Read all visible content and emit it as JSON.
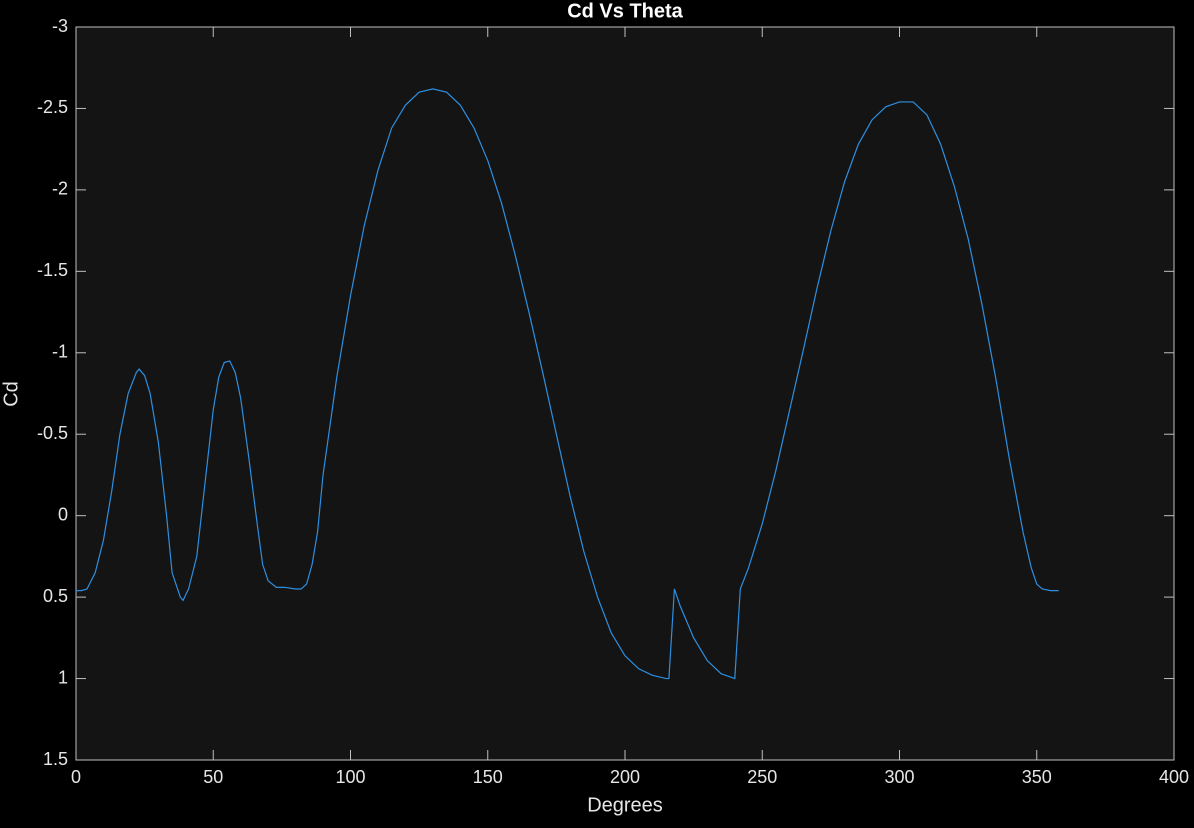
{
  "chart_data": {
    "type": "line",
    "title": "Cd Vs Theta",
    "x_label": "Degrees",
    "y_label": "Cd",
    "y_reversed": true,
    "grid": false,
    "xlim": [
      0,
      400
    ],
    "xticks": [
      0,
      50,
      100,
      150,
      200,
      250,
      300,
      350,
      400
    ],
    "ylim": [
      -3,
      1.5
    ],
    "yticks": [
      -3,
      -2.5,
      -2,
      -1.5,
      -1,
      -0.5,
      0,
      0.5,
      1,
      1.5
    ],
    "series": [
      {
        "name": "Cd",
        "color": "#2e8fe0",
        "x": [
          0,
          2,
          4,
          7,
          10,
          13,
          16,
          19,
          22,
          23,
          25,
          27,
          30,
          33,
          35,
          38,
          39,
          41,
          44,
          47,
          50,
          52,
          54,
          56,
          58,
          60,
          63,
          66,
          68,
          70,
          73,
          76,
          80,
          82,
          84,
          86,
          88,
          90,
          95,
          100,
          105,
          110,
          115,
          120,
          125,
          130,
          135,
          140,
          145,
          150,
          155,
          160,
          165,
          170,
          175,
          180,
          185,
          190,
          195,
          200,
          205,
          210,
          215,
          216,
          218,
          220,
          225,
          230,
          235,
          240,
          242,
          245,
          250,
          255,
          260,
          265,
          270,
          275,
          280,
          285,
          290,
          295,
          300,
          305,
          310,
          315,
          320,
          325,
          330,
          335,
          340,
          345,
          348,
          350,
          352,
          355,
          358
        ],
        "values": [
          0.46,
          0.46,
          0.45,
          0.35,
          0.15,
          -0.15,
          -0.5,
          -0.75,
          -0.88,
          -0.9,
          -0.86,
          -0.75,
          -0.45,
          0,
          0.35,
          0.5,
          0.52,
          0.45,
          0.25,
          -0.2,
          -0.65,
          -0.85,
          -0.94,
          -0.95,
          -0.88,
          -0.72,
          -0.35,
          0.05,
          0.3,
          0.4,
          0.44,
          0.44,
          0.45,
          0.45,
          0.42,
          0.3,
          0.1,
          -0.25,
          -0.85,
          -1.35,
          -1.78,
          -2.12,
          -2.38,
          -2.52,
          -2.6,
          -2.62,
          -2.6,
          -2.52,
          -2.38,
          -2.18,
          -1.92,
          -1.6,
          -1.25,
          -0.88,
          -0.5,
          -0.12,
          0.22,
          0.5,
          0.72,
          0.86,
          0.94,
          0.98,
          1.0,
          1.0,
          0.45,
          0.55,
          0.75,
          0.89,
          0.97,
          1.0,
          0.45,
          0.32,
          0.05,
          -0.28,
          -0.65,
          -1.02,
          -1.4,
          -1.75,
          -2.05,
          -2.28,
          -2.43,
          -2.51,
          -2.54,
          -2.54,
          -2.46,
          -2.28,
          -2.02,
          -1.7,
          -1.3,
          -0.85,
          -0.35,
          0.1,
          0.32,
          0.42,
          0.45,
          0.46,
          0.46
        ]
      }
    ]
  }
}
